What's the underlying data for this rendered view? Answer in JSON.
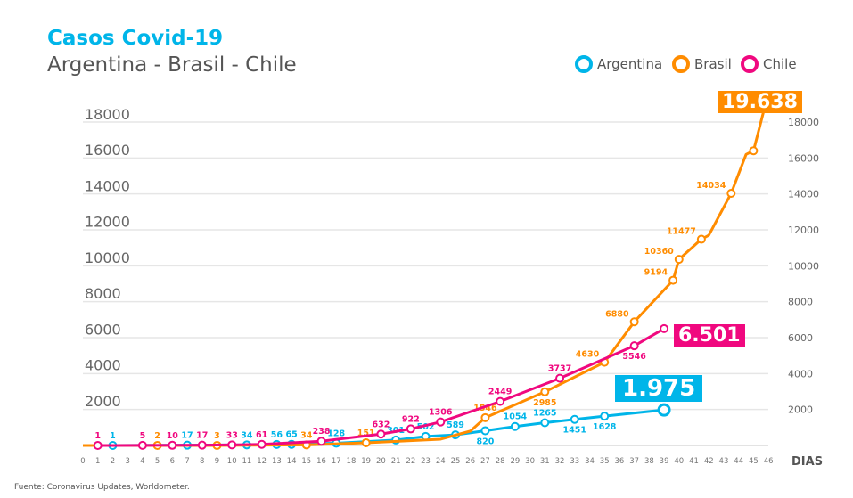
{
  "title": "Casos Covid-19",
  "subtitle": "Argentina - Brasil - Chile",
  "source": "Fuente: Coronavirus Updates, Worldometer.",
  "legend": [
    {
      "name": "Argentina",
      "color": "#00b5e9"
    },
    {
      "name": "Brasil",
      "color": "#ff8c00"
    },
    {
      "name": "Chile",
      "color": "#f0087f"
    }
  ],
  "callouts": {
    "argentina": "1.975",
    "brasil": "19.638",
    "chile": "6.501"
  },
  "chart_data": {
    "type": "line",
    "xlabel": "DIAS",
    "ylabel": "",
    "xlim": [
      0,
      46
    ],
    "ylim": [
      0,
      18000
    ],
    "x_ticks": [
      0,
      1,
      2,
      3,
      4,
      5,
      6,
      7,
      8,
      9,
      10,
      11,
      12,
      13,
      14,
      15,
      16,
      17,
      18,
      19,
      20,
      21,
      22,
      23,
      24,
      25,
      26,
      27,
      28,
      29,
      30,
      31,
      32,
      33,
      34,
      35,
      36,
      37,
      38,
      39,
      40,
      41,
      42,
      43,
      44,
      45,
      46
    ],
    "y_ticks_left": [
      "2000",
      "4000",
      "6000",
      "8000",
      "10000",
      "12000",
      "14000",
      "16000",
      "18000"
    ],
    "y_ticks_right": [
      "2000",
      "4000",
      "6000",
      "8000",
      "10000",
      "12000",
      "14000",
      "16000",
      "18000"
    ],
    "grid": true,
    "series": [
      {
        "name": "Argentina",
        "color": "#00b5e9",
        "points": [
          [
            0,
            0,
            null
          ],
          [
            2,
            1,
            "1"
          ],
          [
            7,
            17,
            "17"
          ],
          [
            11,
            34,
            "34"
          ],
          [
            13,
            56,
            "56"
          ],
          [
            14,
            65,
            "65"
          ],
          [
            17,
            128,
            "128"
          ],
          [
            21,
            301,
            "301"
          ],
          [
            23,
            502,
            "502"
          ],
          [
            25,
            589,
            "589"
          ],
          [
            27,
            820,
            "820"
          ],
          [
            29,
            1054,
            "1054"
          ],
          [
            31,
            1265,
            "1265"
          ],
          [
            33,
            1451,
            "1451"
          ],
          [
            35,
            1628,
            "1628"
          ],
          [
            39,
            1975,
            ""
          ]
        ]
      },
      {
        "name": "Brasil",
        "color": "#ff8c00",
        "points": [
          [
            0,
            0,
            null
          ],
          [
            5,
            2,
            "2"
          ],
          [
            9,
            3,
            "3"
          ],
          [
            15,
            34,
            "34"
          ],
          [
            19,
            151,
            "151"
          ],
          [
            24,
            350,
            null
          ],
          [
            26,
            800,
            null
          ],
          [
            27,
            1546,
            "1546"
          ],
          [
            31,
            2985,
            "2985"
          ],
          [
            35,
            4630,
            "4630"
          ],
          [
            37,
            6880,
            "6880"
          ],
          [
            39.6,
            9194,
            "9194"
          ],
          [
            40,
            10360,
            "10360"
          ],
          [
            41.5,
            11477,
            "11477"
          ],
          [
            42,
            11700,
            null
          ],
          [
            43.5,
            14034,
            "14034"
          ],
          [
            44.5,
            16200,
            null
          ],
          [
            45,
            16400,
            ""
          ],
          [
            46,
            19638,
            null
          ]
        ]
      },
      {
        "name": "Chile",
        "color": "#f0087f",
        "points": [
          [
            1,
            1,
            "1"
          ],
          [
            4,
            5,
            "5"
          ],
          [
            6,
            10,
            "10"
          ],
          [
            8,
            17,
            "17"
          ],
          [
            10,
            33,
            "33"
          ],
          [
            12,
            61,
            "61"
          ],
          [
            16,
            238,
            "238"
          ],
          [
            20,
            632,
            "632"
          ],
          [
            22,
            922,
            "922"
          ],
          [
            24,
            1306,
            "1306"
          ],
          [
            28,
            2449,
            "2449"
          ],
          [
            32,
            3737,
            "3737"
          ],
          [
            37,
            5546,
            "5546"
          ],
          [
            39,
            6501,
            ""
          ]
        ]
      }
    ]
  }
}
